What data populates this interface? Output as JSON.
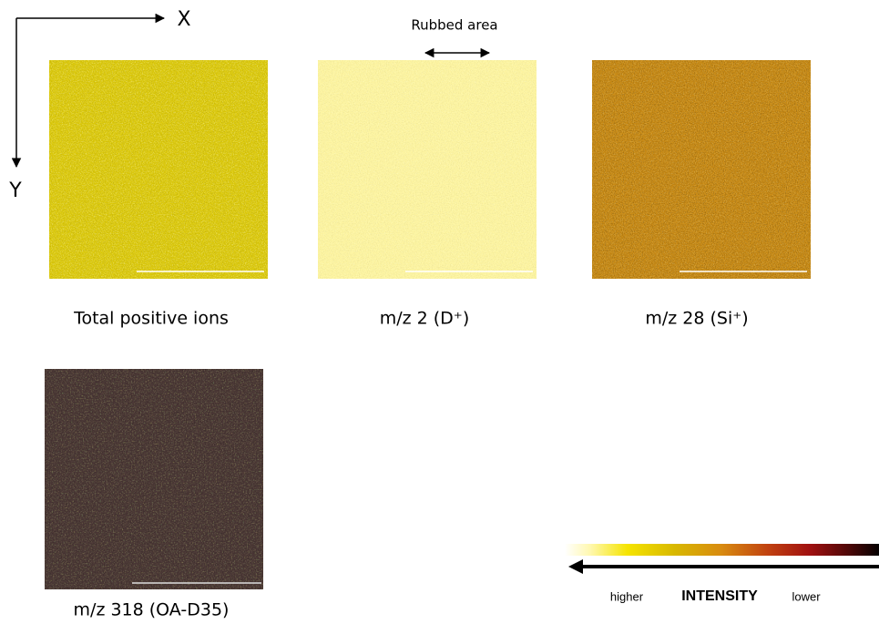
{
  "axes": {
    "x_label": "X",
    "y_label": "Y"
  },
  "annotation": "Rubbed area",
  "panels": [
    {
      "caption": "Total positive ions"
    },
    {
      "caption": "m/z 2 (D⁺)"
    },
    {
      "caption": "m/z 28 (Si⁺)"
    },
    {
      "caption": "m/z 318 (OA-D35)"
    }
  ],
  "intensity_scale": {
    "high": "higher",
    "title": "INTENSITY",
    "low": "lower"
  }
}
